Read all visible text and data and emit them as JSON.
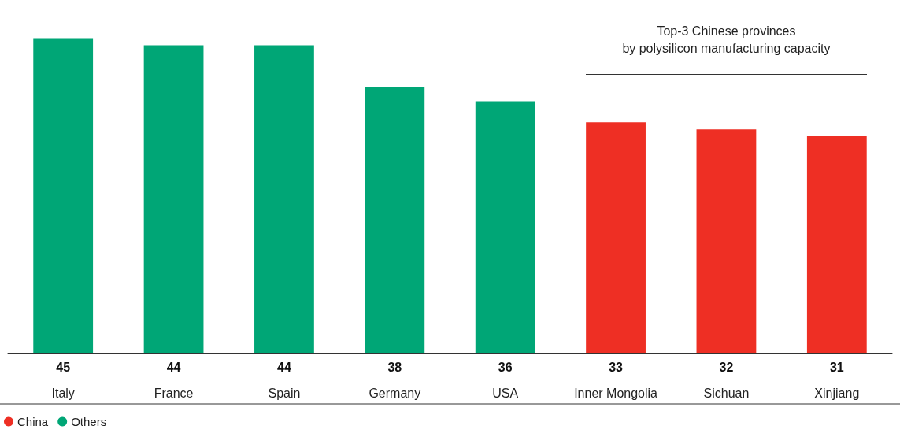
{
  "chart_data": {
    "type": "bar",
    "stacked": true,
    "categories": [
      "Italy",
      "France",
      "Spain",
      "Germany",
      "USA",
      "Inner Mongolia",
      "Sichuan",
      "Xinjiang"
    ],
    "series": [
      {
        "name": "China",
        "color": "#ee2f24",
        "values": [
          null,
          null,
          null,
          null,
          null,
          33,
          32,
          31
        ]
      },
      {
        "name": "Others",
        "color": "#00a676",
        "values": [
          45,
          44,
          44,
          38,
          36,
          null,
          null,
          null
        ]
      }
    ],
    "data_labels": true,
    "legend": "bottom left",
    "annotations": [
      "Top-3 Chinese provinces\nby polysilicon manufacturing capacity"
    ]
  }
}
